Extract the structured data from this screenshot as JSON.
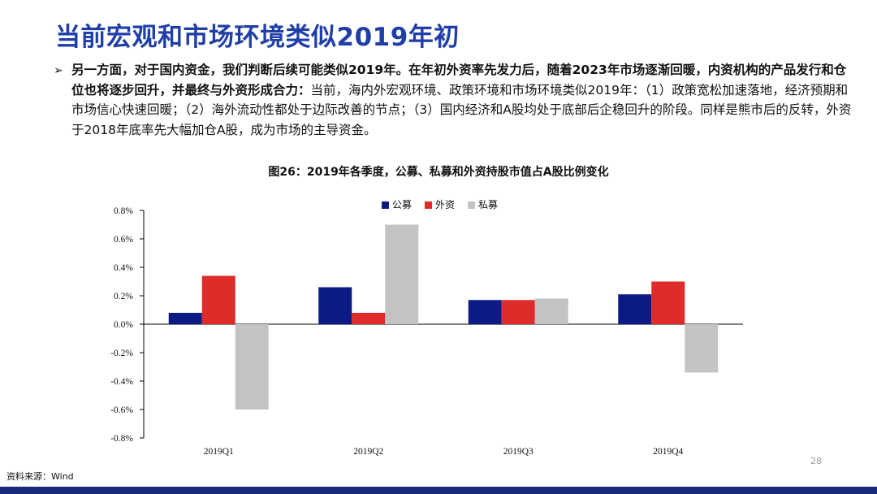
{
  "title": "当前宏观和市场环境类似2019年初",
  "bullet": {
    "bold": "另一方面，对于国内资金，我们判断后续可能类似2019年。在年初外资率先发力后，随着2023年市场逐渐回暖，内资机构的产品发行和仓位也将逐步回升，并最终与外资形成合力：",
    "normal": "当前，海内外宏观环境、政策环境和市场环境类似2019年：（1）政策宽松加速落地，经济预期和市场信心快速回暖；（2）海外流动性都处于边际改善的节点；（3）国内经济和A股均处于底部后企稳回升的阶段。同样是熊市后的反转，外资于2018年底率先大幅加仓A股，成为市场的主导资金。"
  },
  "figure_caption": "图26：2019年各季度，公募、私募和外资持股市值占A股比例变化",
  "source": "资料来源：Wind",
  "page_number": "28",
  "colors": {
    "title": "#1f3ea8",
    "bottom_bar": "#1a2b7a"
  },
  "chart_data": {
    "type": "bar",
    "categories": [
      "2019Q1",
      "2019Q2",
      "2019Q3",
      "2019Q4"
    ],
    "series": [
      {
        "name": "公募",
        "color": "#0b1a84",
        "values": [
          0.08,
          0.26,
          0.17,
          0.21
        ]
      },
      {
        "name": "外资",
        "color": "#e02b2b",
        "values": [
          0.34,
          0.08,
          0.17,
          0.3
        ]
      },
      {
        "name": "私募",
        "color": "#c3c3c3",
        "values": [
          -0.6,
          0.7,
          0.18,
          -0.34
        ]
      }
    ],
    "ylim": [
      -0.8,
      0.8
    ],
    "yticks": [
      "0.8%",
      "0.6%",
      "0.4%",
      "0.2%",
      "0.0%",
      "-0.2%",
      "-0.4%",
      "-0.6%",
      "-0.8%"
    ],
    "xlabel": "",
    "ylabel": "",
    "legend_position": "top-center",
    "grid": false
  }
}
